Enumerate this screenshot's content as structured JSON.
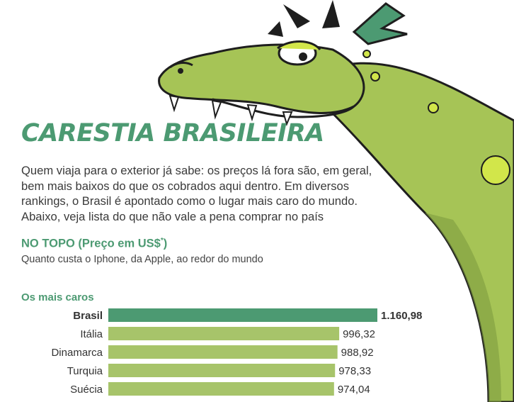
{
  "title": "CARESTIA BRASILEIRA",
  "intro": "Quem viaja para o exterior já sabe: os preços lá fora são, em geral, bem mais baixos do que os cobrados aqui dentro. Em diversos rankings, o Brasil é apontado como o lugar mais caro do mundo. Abaixo, veja lista do que não vale a pena comprar no país",
  "section": {
    "title": "NO TOPO (Preço em US$",
    "title_mark": "*",
    "title_end": ")",
    "subtitle": "Quanto custa o Iphone, da Apple, ao redor do mundo"
  },
  "colors": {
    "title": "#4c9a72",
    "highlight_bar": "#4c9a72",
    "bar": "#a7c46a",
    "dragon_body": "#a6c456",
    "dragon_spots": "#d2e64a"
  },
  "chart_data": {
    "type": "bar",
    "orientation": "horizontal",
    "group_title": "Os mais caros",
    "categories": [
      "Brasil",
      "Itália",
      "Dinamarca",
      "Turquia",
      "Suécia"
    ],
    "values": [
      1160.98,
      996.32,
      988.92,
      978.33,
      974.04
    ],
    "value_labels": [
      "1.160,98",
      "996,32",
      "988,92",
      "978,33",
      "974,04"
    ],
    "highlight": "Brasil"
  }
}
